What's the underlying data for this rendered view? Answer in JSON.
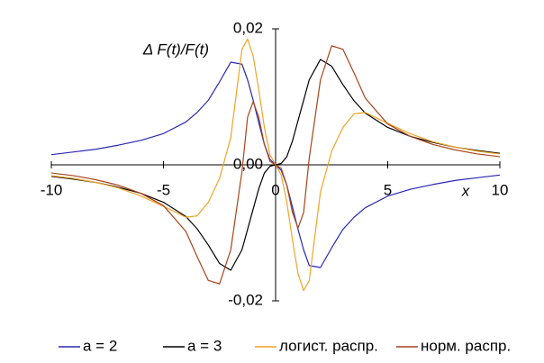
{
  "chart_data": {
    "type": "line",
    "y_label": "Δ F(t)/F(t)",
    "x_label": "x",
    "x": [
      -10,
      -9,
      -8,
      -7,
      -6,
      -5,
      -4,
      -3.5,
      -3,
      -2.5,
      -2,
      -1.5,
      -1.25,
      -1,
      -0.75,
      -0.5,
      -0.25,
      0,
      0.25,
      0.5,
      0.75,
      1,
      1.25,
      1.5,
      2,
      2.5,
      3,
      3.5,
      4,
      5,
      6,
      7,
      8,
      9,
      10
    ],
    "xlim": [
      -10,
      10
    ],
    "xticks": [
      -10,
      -5,
      0,
      5,
      10
    ],
    "ylim": [
      -0.02,
      0.02
    ],
    "yticks": [
      {
        "value": -0.02,
        "label": "-0,02"
      },
      {
        "value": 0,
        "label": "0,00"
      },
      {
        "value": 0.02,
        "label": "0,02"
      }
    ],
    "series": [
      {
        "name": "a = 2",
        "color": "#2828b4",
        "values": [
          0.0015,
          0.0019,
          0.0023,
          0.0029,
          0.0036,
          0.0046,
          0.0063,
          0.0077,
          0.0095,
          0.0122,
          0.0151,
          0.0148,
          0.0125,
          0.0095,
          0.0062,
          0.003,
          0.0008,
          0,
          -0.0008,
          -0.003,
          -0.0062,
          -0.0095,
          -0.0125,
          -0.0148,
          -0.0151,
          -0.0122,
          -0.0095,
          -0.0077,
          -0.0063,
          -0.0046,
          -0.0036,
          -0.0029,
          -0.0023,
          -0.0019,
          -0.0015
        ]
      },
      {
        "name": "a = 3",
        "color": "#000000",
        "values": [
          -0.0017,
          -0.0021,
          -0.0026,
          -0.0033,
          -0.0042,
          -0.0055,
          -0.0076,
          -0.0094,
          -0.0118,
          -0.0145,
          -0.0155,
          -0.0125,
          -0.0095,
          -0.0065,
          -0.0035,
          -0.0012,
          -0.0002,
          0,
          0.0002,
          0.0012,
          0.0035,
          0.0065,
          0.0095,
          0.0125,
          0.0155,
          0.0145,
          0.0118,
          0.0094,
          0.0076,
          0.0055,
          0.0042,
          0.0033,
          0.0026,
          0.0021,
          0.0017
        ]
      },
      {
        "name": "логист. распр.",
        "color": "#f0a428",
        "values": [
          -0.0016,
          -0.002,
          -0.0026,
          -0.0034,
          -0.0046,
          -0.0061,
          -0.0077,
          -0.0075,
          -0.0055,
          -0.002,
          0.004,
          0.017,
          0.0185,
          0.016,
          0.011,
          0.0055,
          0.0015,
          0,
          -0.0015,
          -0.0055,
          -0.011,
          -0.016,
          -0.0185,
          -0.017,
          -0.004,
          0.002,
          0.0055,
          0.0075,
          0.0077,
          0.0061,
          0.0046,
          0.0034,
          0.0026,
          0.002,
          0.0016
        ]
      },
      {
        "name": "норм. распр.",
        "color": "#a8441c",
        "values": [
          -0.0012,
          -0.0016,
          -0.0022,
          -0.003,
          -0.0042,
          -0.006,
          -0.0098,
          -0.0135,
          -0.017,
          -0.0175,
          -0.0125,
          -0.001,
          0.007,
          0.0093,
          0.007,
          0.003,
          0.0005,
          0,
          -0.0005,
          -0.003,
          -0.007,
          -0.0093,
          -0.007,
          0.001,
          0.0125,
          0.0175,
          0.017,
          0.0135,
          0.0098,
          0.006,
          0.0042,
          0.003,
          0.0022,
          0.0016,
          0.0012
        ]
      }
    ]
  }
}
